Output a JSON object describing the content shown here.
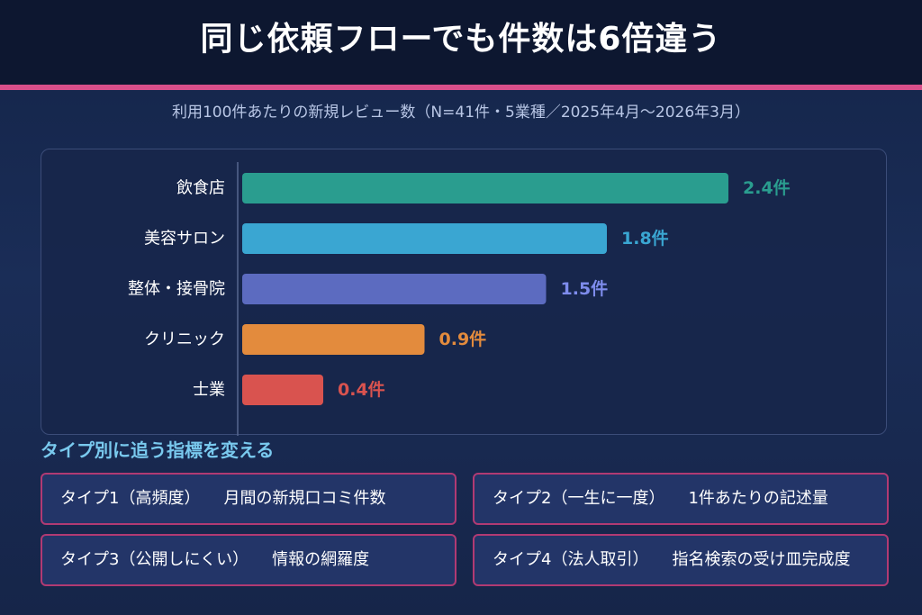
{
  "page": {
    "title": "同じ依頼フローでも件数は6倍違う",
    "subtitle": "利用100件あたりの新規レビュー数（N=41件・5業種／2025年4月〜2026年3月）",
    "section_title": "タイプ別に追う指標を変える"
  },
  "colors": {
    "header_bg": "#0d1730",
    "accent": "#d94f8a",
    "section_title": "#79c9ee",
    "card_border": "#b13a73"
  },
  "chart_data": {
    "type": "bar",
    "orientation": "horizontal",
    "categories": [
      "飲食店",
      "美容サロン",
      "整体・接骨院",
      "クリニック",
      "士業"
    ],
    "values": [
      2.4,
      1.8,
      1.5,
      0.9,
      0.4
    ],
    "value_labels": [
      "2.4件",
      "1.8件",
      "1.5件",
      "0.9件",
      "0.4件"
    ],
    "bar_colors": [
      "#2a9d8f",
      "#3aa6d2",
      "#5c6bc0",
      "#e38b3d",
      "#d9534f"
    ],
    "label_colors": [
      "#2a9d8f",
      "#3aa6d2",
      "#7e8cec",
      "#e38b3d",
      "#d9534f"
    ],
    "xlim": [
      0,
      2.4
    ],
    "grid": false,
    "legend": "none"
  },
  "type_cards": [
    {
      "label": "タイプ1（高頻度）",
      "metric": "月間の新規口コミ件数"
    },
    {
      "label": "タイプ2（一生に一度）",
      "metric": "1件あたりの記述量"
    },
    {
      "label": "タイプ3（公開しにくい）",
      "metric": "情報の網羅度"
    },
    {
      "label": "タイプ4（法人取引）",
      "metric": "指名検索の受け皿完成度"
    }
  ]
}
